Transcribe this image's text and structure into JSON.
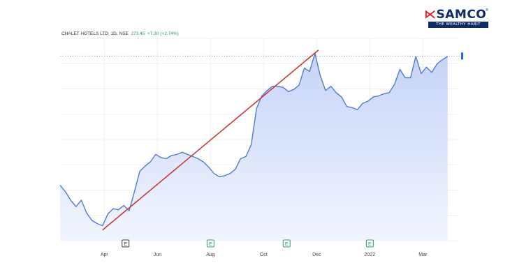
{
  "brand": {
    "name": "SAMCO",
    "tagline": "THE WEALTHY HABIT",
    "reg": "®"
  },
  "header": {
    "symbol": "CHALET HOTELS LTD, 1D, NSE",
    "price": "273.45",
    "change": "+7.30 (+2.74%)"
  },
  "chart_data": {
    "type": "area",
    "x_tick_labels": [
      "Apr",
      "Jun",
      "Aug",
      "Oct",
      "Dec",
      "2022",
      "Mar"
    ],
    "x_tick_pos": [
      2.5,
      5.5,
      8.5,
      11.5,
      14.5,
      17.5,
      20.5
    ],
    "xlim": [
      0,
      22.5
    ],
    "ylim": [
      100,
      290
    ],
    "grid": true,
    "last_price_level": 273.45,
    "series": [
      {
        "x": [
          0.0,
          0.3,
          0.6,
          0.9,
          1.2,
          1.5,
          1.8,
          2.1,
          2.4,
          2.7,
          3.0,
          3.3,
          3.6,
          3.9,
          4.2,
          4.5,
          4.8,
          5.1,
          5.4,
          5.7,
          6.0,
          6.3,
          6.6,
          6.9,
          7.2,
          7.5,
          7.8,
          8.1,
          8.4,
          8.7,
          9.0,
          9.3,
          9.6,
          9.9,
          10.2,
          10.5,
          10.8,
          11.1,
          11.4,
          11.7,
          12.0,
          12.3,
          12.6,
          12.9,
          13.2,
          13.5,
          13.8,
          14.1,
          14.4,
          14.7,
          15.0,
          15.3,
          15.6,
          15.9,
          16.2,
          16.5,
          16.8,
          17.1,
          17.4,
          17.7,
          18.0,
          18.3,
          18.6,
          18.9,
          19.2,
          19.5,
          19.8,
          20.1,
          20.4,
          20.7,
          21.0,
          21.3,
          21.6,
          21.9
        ],
        "y": [
          152,
          146,
          138,
          132,
          138,
          126,
          119,
          116,
          114,
          125,
          130,
          129,
          133,
          128,
          146,
          165,
          170,
          174,
          181,
          178,
          177,
          180,
          181,
          183,
          181,
          179,
          177,
          174,
          169,
          163,
          160,
          161,
          163,
          167,
          177,
          179,
          190,
          224,
          236,
          241,
          245,
          245,
          244,
          240,
          242,
          246,
          262,
          259,
          276,
          255,
          241,
          245,
          239,
          235,
          226,
          225,
          223,
          229,
          231,
          235,
          236,
          238,
          239,
          247,
          261,
          253,
          253,
          273,
          257,
          263,
          258,
          266,
          270,
          273
        ]
      }
    ],
    "drawings": [
      {
        "type": "trendline",
        "from": {
          "x": 2.4,
          "y": 110
        },
        "to": {
          "x": 14.6,
          "y": 279
        },
        "color": "#c83a3a"
      }
    ],
    "markers": [
      {
        "x": 3.7,
        "label": "E",
        "style": "dark"
      },
      {
        "x": 8.5,
        "label": "E",
        "style": "green"
      },
      {
        "x": 12.8,
        "label": "E",
        "style": "green"
      },
      {
        "x": 17.5,
        "label": "E",
        "style": "green"
      }
    ]
  },
  "colors": {
    "line": "#4f7cd0",
    "fill_top": "#c6d4f7",
    "fill_bottom": "#f1f5ff",
    "grid": "#eef0f5",
    "axis_text": "#444444",
    "marker_dark": "#333333",
    "marker_green": "#2e9e6b",
    "last_price_marker": "#2962ff"
  }
}
